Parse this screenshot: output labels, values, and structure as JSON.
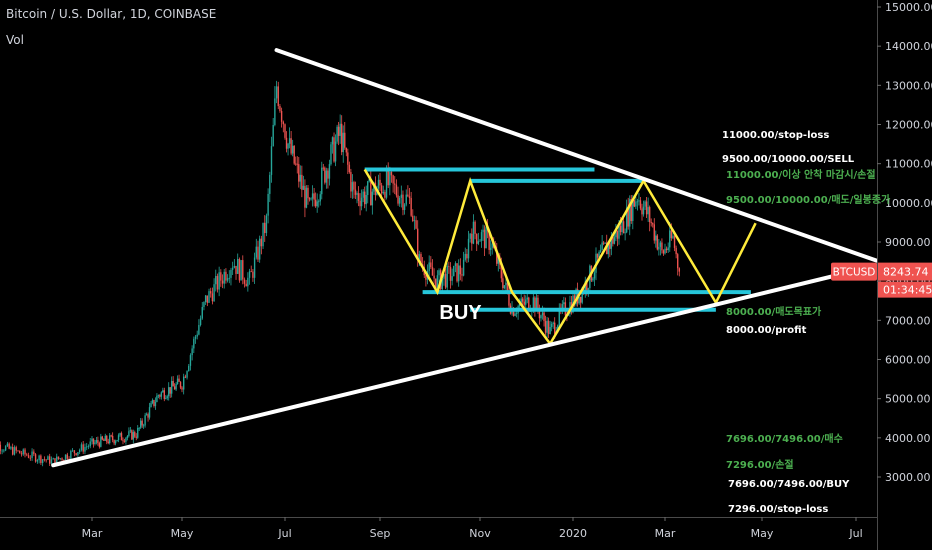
{
  "header": {
    "title": "Bitcoin / U.S. Dollar, 1D, COINBASE",
    "indicator": "Vol"
  },
  "colors": {
    "up": "#26a69a",
    "down": "#ef5350",
    "trendline": "#ffffff",
    "channel": "#26c6da",
    "zigzag": "#ffeb3b",
    "annotation_green": "#4caf50",
    "annotation_white": "#ffffff",
    "price_tag": "#ef5350"
  },
  "price_tag": {
    "symbol": "BTCUSD",
    "price": "8243.74",
    "countdown": "01:34:45"
  },
  "buy_label": "BUY",
  "annotations": [
    {
      "text": "11000.00/stop-loss",
      "color": "white"
    },
    {
      "text": "9500.00/10000.00/SELL",
      "color": "white"
    },
    {
      "text": "11000.00/이상 안착 마감시/손절",
      "color": "green"
    },
    {
      "text": "9500.00/10000.00/매도/일봉종가",
      "color": "green"
    },
    {
      "text": "8000.00/매도목표가",
      "color": "green"
    },
    {
      "text": "8000.00/profit",
      "color": "white"
    },
    {
      "text": "7696.00/7496.00/매수",
      "color": "green"
    },
    {
      "text": "7296.00/손절",
      "color": "green"
    },
    {
      "text": "7696.00/7496.00/BUY",
      "color": "white"
    },
    {
      "text": "7296.00/stop-loss",
      "color": "white"
    }
  ],
  "chart_data": {
    "type": "candlestick",
    "title": "Bitcoin / U.S. Dollar, 1D, COINBASE",
    "y_tick_labels": [
      "15000.00",
      "14000.00",
      "13000.00",
      "12000.00",
      "11000.00",
      "10000.00",
      "9000.00",
      "8000.00",
      "7000.00",
      "6000.00",
      "5000.00",
      "4000.00",
      "3000.00"
    ],
    "ylim": [
      2300,
      15200
    ],
    "x_tick_labels": [
      "Mar",
      "May",
      "Jul",
      "Sep",
      "Nov",
      "2020",
      "Mar",
      "May",
      "Jul"
    ],
    "x_tick_dates": [
      "2019-03-01",
      "2019-05-01",
      "2019-07-01",
      "2019-09-01",
      "2019-11-01",
      "2020-01-01",
      "2020-03-01",
      "2020-05-01",
      "2020-07-01"
    ],
    "price_path": [
      {
        "date": "2019-01-01",
        "close": 3900
      },
      {
        "date": "2019-01-20",
        "close": 3600
      },
      {
        "date": "2019-02-07",
        "close": 3400
      },
      {
        "date": "2019-03-01",
        "close": 3850
      },
      {
        "date": "2019-03-31",
        "close": 4100
      },
      {
        "date": "2019-04-15",
        "close": 5100
      },
      {
        "date": "2019-05-01",
        "close": 5400
      },
      {
        "date": "2019-05-15",
        "close": 7500
      },
      {
        "date": "2019-05-31",
        "close": 8500
      },
      {
        "date": "2019-06-10",
        "close": 8000
      },
      {
        "date": "2019-06-20",
        "close": 9500
      },
      {
        "date": "2019-06-26",
        "close": 13000
      },
      {
        "date": "2019-07-03",
        "close": 11500
      },
      {
        "date": "2019-07-17",
        "close": 9800
      },
      {
        "date": "2019-07-24",
        "close": 10500
      },
      {
        "date": "2019-08-06",
        "close": 11800
      },
      {
        "date": "2019-08-15",
        "close": 10200
      },
      {
        "date": "2019-08-22",
        "close": 10200
      },
      {
        "date": "2019-09-05",
        "close": 10500
      },
      {
        "date": "2019-09-20",
        "close": 10000
      },
      {
        "date": "2019-09-25",
        "close": 8500
      },
      {
        "date": "2019-10-06",
        "close": 8000
      },
      {
        "date": "2019-10-22",
        "close": 8300
      },
      {
        "date": "2019-10-26",
        "close": 9300
      },
      {
        "date": "2019-11-08",
        "close": 9000
      },
      {
        "date": "2019-11-22",
        "close": 7300
      },
      {
        "date": "2019-12-06",
        "close": 7500
      },
      {
        "date": "2019-12-17",
        "close": 6700
      },
      {
        "date": "2019-12-25",
        "close": 7200
      },
      {
        "date": "2020-01-06",
        "close": 7700
      },
      {
        "date": "2020-01-20",
        "close": 8700
      },
      {
        "date": "2020-02-02",
        "close": 9400
      },
      {
        "date": "2020-02-12",
        "close": 10200
      },
      {
        "date": "2020-02-20",
        "close": 9600
      },
      {
        "date": "2020-02-28",
        "close": 8700
      },
      {
        "date": "2020-03-06",
        "close": 9100
      },
      {
        "date": "2020-03-10",
        "close": 8243.74
      }
    ],
    "last_price": 8243.74,
    "drawings": {
      "triangle_upper": [
        {
          "date": "2019-06-26",
          "price": 13900
        },
        {
          "date": "2020-07-25",
          "price": 8520
        }
      ],
      "triangle_lower": [
        {
          "date": "2019-02-07",
          "price": 3300
        },
        {
          "date": "2020-07-25",
          "price": 8400
        }
      ],
      "channel_lines": [
        {
          "from": "2019-08-22",
          "to": "2020-01-15",
          "price": 10850
        },
        {
          "from": "2019-10-26",
          "to": "2020-02-16",
          "price": 10560
        },
        {
          "from": "2019-09-27",
          "to": "2020-04-24",
          "price": 7720
        },
        {
          "from": "2019-10-26",
          "to": "2020-04-02",
          "price": 7270
        }
      ],
      "zigzag": [
        {
          "date": "2019-08-22",
          "price": 10850
        },
        {
          "date": "2019-10-06",
          "price": 7720
        },
        {
          "date": "2019-10-26",
          "price": 10560
        },
        {
          "date": "2019-11-22",
          "price": 7720
        },
        {
          "date": "2019-12-17",
          "price": 6400
        },
        {
          "date": "2020-01-06",
          "price": 7720
        },
        {
          "date": "2020-02-16",
          "price": 10560
        },
        {
          "date": "2020-04-02",
          "price": 7450
        },
        {
          "date": "2020-04-27",
          "price": 9480
        }
      ]
    }
  }
}
